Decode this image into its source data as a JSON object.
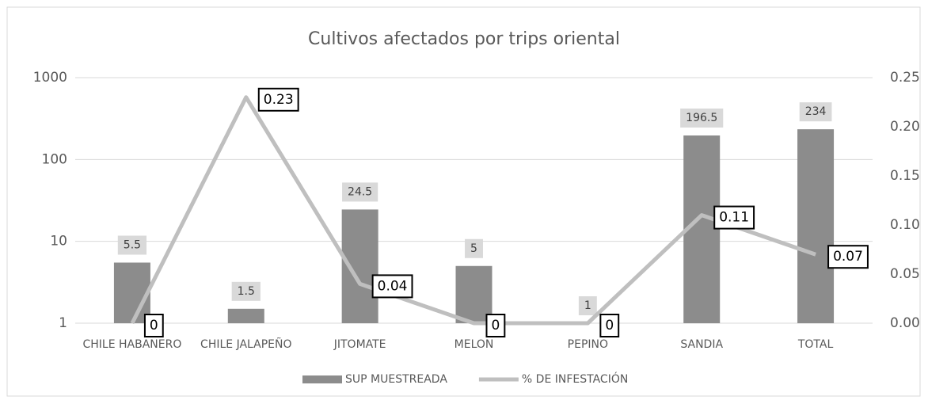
{
  "chart_data": {
    "type": "bar",
    "title": "Cultivos afectados por trips oriental",
    "categories": [
      "CHILE HABANERO",
      "CHILE JALAPEÑO",
      "JITOMATE",
      "MELON",
      "PEPINO",
      "SANDIA",
      "TOTAL"
    ],
    "series": [
      {
        "name": "SUP MUESTREADA",
        "type": "bar",
        "color": "#8c8c8c",
        "values": [
          5.5,
          1.5,
          24.5,
          5,
          1,
          196.5,
          234
        ]
      },
      {
        "name": "% DE INFESTACIÓN",
        "type": "line",
        "axis": "y2",
        "color": "#bfbfbf",
        "values": [
          0,
          0.23,
          0.04,
          0,
          0,
          0.11,
          0.07
        ]
      }
    ],
    "yscale": "log",
    "ylim": [
      1,
      1000
    ],
    "yticks": [
      1,
      10,
      100,
      1000
    ],
    "y2lim": [
      0,
      0.25
    ],
    "y2ticks": [
      {
        "value": 0,
        "label": "0.00"
      },
      {
        "value": 0.05,
        "label": "0.05"
      },
      {
        "value": 0.1,
        "label": "0.10"
      },
      {
        "value": 0.15,
        "label": "0.15"
      },
      {
        "value": 0.2,
        "label": "0.20"
      },
      {
        "value": 0.25,
        "label": "0.25"
      }
    ],
    "grid": true,
    "legend": "bottom"
  }
}
